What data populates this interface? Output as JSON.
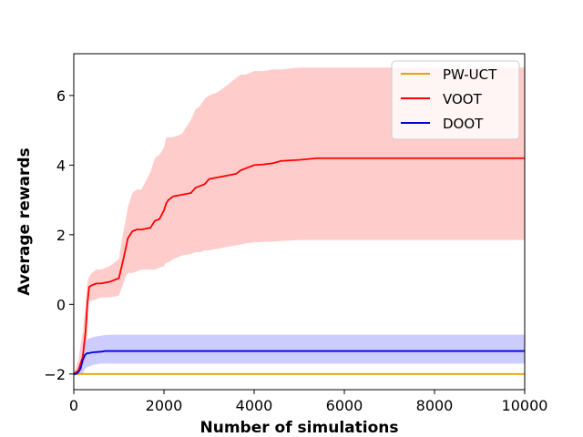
{
  "chart_data": {
    "type": "line",
    "xlabel": "Number of simulations",
    "ylabel": "Average rewards",
    "xlim": [
      0,
      10000
    ],
    "ylim": [
      -2.45,
      7.2
    ],
    "x_ticks": [
      0,
      2000,
      4000,
      6000,
      8000,
      10000
    ],
    "y_ticks": [
      -2,
      0,
      2,
      4,
      6
    ],
    "x_tick_labels": [
      "0",
      "2000",
      "4000",
      "6000",
      "8000",
      "10000"
    ],
    "y_tick_labels": [
      "−2",
      "0",
      "2",
      "4",
      "6"
    ],
    "grid": false,
    "legend_position": "top-right",
    "series": [
      {
        "name": "PW-UCT",
        "color": "#e8a200",
        "x": [
          0,
          10000
        ],
        "y": [
          -2.0,
          -2.0
        ]
      },
      {
        "name": "VOOT",
        "color": "#ff0000",
        "band_color": "#ffcccc",
        "x": [
          0,
          100,
          200,
          260,
          300,
          340,
          400,
          500,
          600,
          800,
          1000,
          1100,
          1150,
          1200,
          1300,
          1400,
          1500,
          1700,
          1800,
          1900,
          2000,
          2050,
          2100,
          2200,
          2400,
          2600,
          2700,
          2800,
          2900,
          3000,
          3200,
          3400,
          3600,
          3700,
          3800,
          4000,
          4200,
          4400,
          4600,
          5000,
          5400,
          6000,
          8000,
          10000
        ],
        "y": [
          -2.0,
          -1.9,
          -1.5,
          -0.8,
          0.0,
          0.5,
          0.55,
          0.6,
          0.6,
          0.65,
          0.75,
          1.3,
          1.6,
          1.9,
          2.1,
          2.15,
          2.15,
          2.2,
          2.4,
          2.45,
          2.7,
          2.9,
          3.0,
          3.1,
          3.15,
          3.2,
          3.35,
          3.4,
          3.45,
          3.6,
          3.65,
          3.7,
          3.75,
          3.85,
          3.9,
          4.0,
          4.02,
          4.05,
          4.12,
          4.15,
          4.2,
          4.2,
          4.2,
          4.2
        ],
        "upper": [
          -2.0,
          -1.6,
          -0.8,
          0.0,
          0.6,
          0.8,
          0.9,
          1.0,
          1.0,
          1.1,
          1.3,
          2.1,
          2.4,
          2.8,
          3.2,
          3.3,
          3.3,
          3.8,
          4.2,
          4.3,
          4.5,
          4.8,
          4.8,
          4.8,
          4.9,
          5.3,
          5.6,
          5.7,
          5.9,
          6.0,
          6.1,
          6.3,
          6.5,
          6.6,
          6.6,
          6.7,
          6.7,
          6.75,
          6.75,
          6.8,
          6.8,
          6.8,
          6.8,
          6.8
        ],
        "lower": [
          -2.0,
          -2.0,
          -2.0,
          -1.8,
          -0.9,
          0.1,
          0.1,
          0.15,
          0.2,
          0.2,
          0.25,
          0.6,
          0.8,
          0.9,
          0.9,
          0.95,
          1.0,
          1.0,
          1.0,
          1.05,
          1.1,
          1.2,
          1.2,
          1.3,
          1.4,
          1.45,
          1.5,
          1.5,
          1.55,
          1.55,
          1.6,
          1.65,
          1.7,
          1.72,
          1.75,
          1.78,
          1.8,
          1.8,
          1.82,
          1.85,
          1.85,
          1.85,
          1.85,
          1.85
        ]
      },
      {
        "name": "DOOT",
        "color": "#0000dd",
        "band_color": "#ccccff",
        "x": [
          0,
          50,
          100,
          150,
          200,
          250,
          300,
          350,
          400,
          500,
          600,
          700,
          1000,
          2000,
          4000,
          6000,
          8000,
          10000
        ],
        "y": [
          -2.0,
          -2.0,
          -1.95,
          -1.85,
          -1.6,
          -1.45,
          -1.4,
          -1.4,
          -1.38,
          -1.37,
          -1.36,
          -1.34,
          -1.34,
          -1.34,
          -1.34,
          -1.34,
          -1.34,
          -1.34
        ],
        "upper": [
          -2.0,
          -2.0,
          -1.9,
          -1.6,
          -1.3,
          -1.1,
          -1.0,
          -0.98,
          -0.95,
          -0.92,
          -0.9,
          -0.88,
          -0.87,
          -0.87,
          -0.87,
          -0.87,
          -0.87,
          -0.87
        ],
        "lower": [
          -2.0,
          -2.0,
          -2.0,
          -2.0,
          -1.95,
          -1.85,
          -1.8,
          -1.78,
          -1.75,
          -1.72,
          -1.7,
          -1.7,
          -1.7,
          -1.7,
          -1.7,
          -1.7,
          -1.7,
          -1.7
        ]
      }
    ]
  }
}
